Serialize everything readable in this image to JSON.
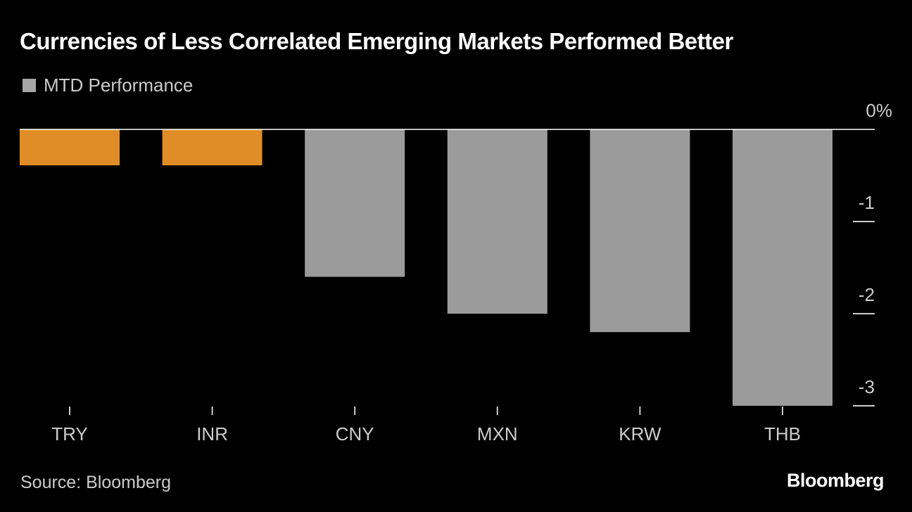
{
  "colors": {
    "background": "#000000",
    "highlight": "#e08d27",
    "default_bar": "#9b9b9b",
    "text": "#ffffff",
    "muted_text": "#cccccc"
  },
  "title": "Currencies of Less Correlated Emerging Markets Performed Better",
  "legend": {
    "label": "MTD Performance",
    "color": "#a6a6a6"
  },
  "source": "Source: Bloomberg",
  "brand": "Bloomberg",
  "chart_data": {
    "type": "bar",
    "title": "Currencies of Less Correlated Emerging Markets Performed Better",
    "categories": [
      "TRY",
      "INR",
      "CNY",
      "MXN",
      "KRW",
      "THB"
    ],
    "series": [
      {
        "name": "MTD Performance",
        "values": [
          -0.39,
          -0.39,
          -1.6,
          -2.0,
          -2.2,
          -3.0
        ],
        "colors": [
          "#e08d27",
          "#e08d27",
          "#9b9b9b",
          "#9b9b9b",
          "#9b9b9b",
          "#9b9b9b"
        ]
      }
    ],
    "y_ticks": [
      {
        "value": 0,
        "label": "0%"
      },
      {
        "value": -1,
        "label": "-1"
      },
      {
        "value": -2,
        "label": "-2"
      },
      {
        "value": -3,
        "label": "-3"
      }
    ],
    "ylim": [
      -3,
      0
    ],
    "y_axis_position": "right",
    "grid": false,
    "legend_position": "top-left"
  }
}
